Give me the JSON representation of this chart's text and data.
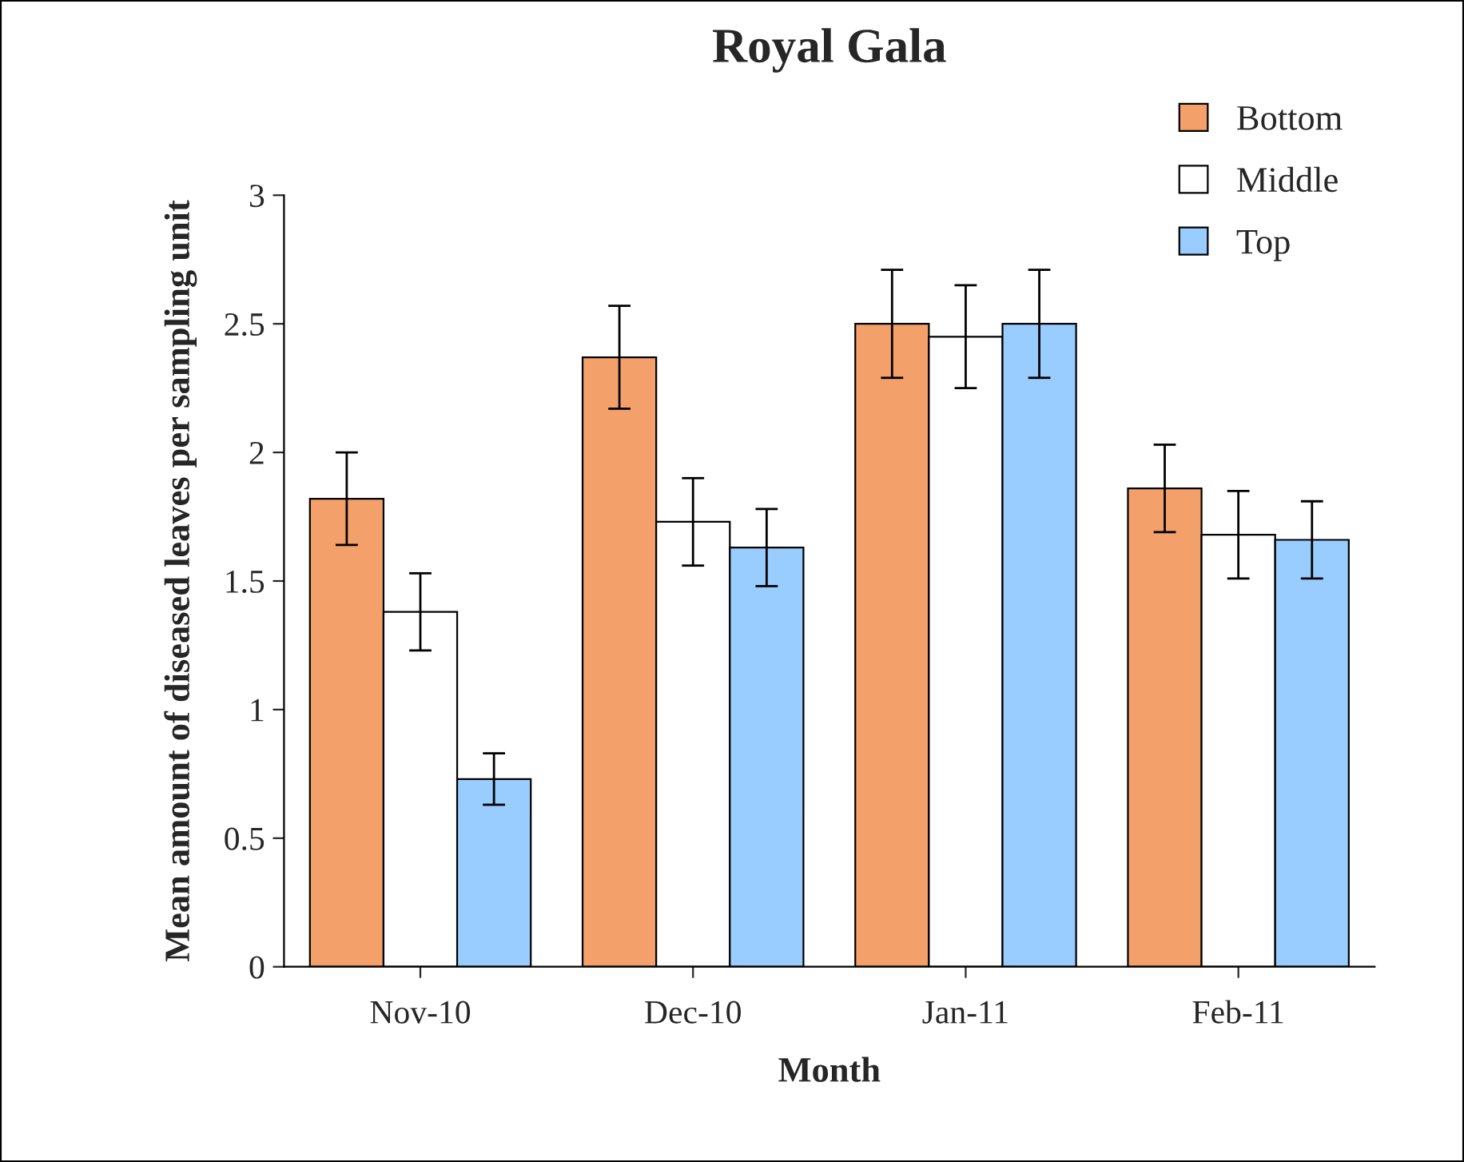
{
  "chart_data": {
    "type": "bar",
    "title": "Royal Gala",
    "xlabel": "Month",
    "ylabel": "Mean amount of diseased leaves per sampling unit",
    "categories": [
      "Nov-10",
      "Dec-10",
      "Jan-11",
      "Feb-11"
    ],
    "series": [
      {
        "name": "Bottom",
        "color": "#f4a06a",
        "values": [
          1.82,
          2.37,
          2.5,
          1.86
        ],
        "errors": [
          0.18,
          0.2,
          0.21,
          0.17
        ]
      },
      {
        "name": "Middle",
        "color": "#ffffff",
        "values": [
          1.38,
          1.73,
          2.45,
          1.68
        ],
        "errors": [
          0.15,
          0.17,
          0.2,
          0.17
        ]
      },
      {
        "name": "Top",
        "color": "#99ccff",
        "values": [
          0.73,
          1.63,
          2.5,
          1.66
        ],
        "errors": [
          0.1,
          0.15,
          0.21,
          0.15
        ]
      }
    ],
    "ylim": [
      0,
      3
    ],
    "yticks": [
      0,
      0.5,
      1,
      1.5,
      2,
      2.5,
      3
    ],
    "grid": false,
    "legend": "top right"
  }
}
